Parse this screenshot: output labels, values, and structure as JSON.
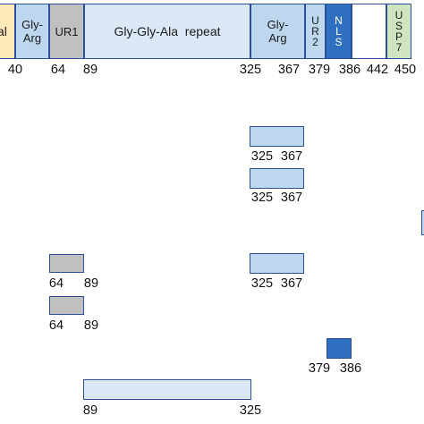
{
  "colors": {
    "border": "#2a4f9c",
    "glyarg": "#bdd7ee",
    "gray": "#c0c0c0",
    "repeat": "#dbe8f6",
    "nls": "#2e6fbf",
    "usp7": "#cfe5c0",
    "nterm": "#fde9b8",
    "white": "#ffffff"
  },
  "full_protein": {
    "domains": [
      {
        "id": "nterm",
        "label": "al",
        "color": "nterm"
      },
      {
        "id": "glyarg1",
        "label": "Gly-\nArg",
        "color": "glyarg"
      },
      {
        "id": "ur1",
        "label": "UR1",
        "color": "gray"
      },
      {
        "id": "repeat",
        "label": "Gly-Gly-Ala  repeat",
        "color": "repeat"
      },
      {
        "id": "glyarg2",
        "label": "Gly-\nArg",
        "color": "glyarg"
      },
      {
        "id": "ur2",
        "label": "U\nR\n2",
        "color": "glyarg",
        "vertical": true
      },
      {
        "id": "nls",
        "label": "N\nL\nS",
        "color": "nls",
        "vertical": true,
        "text_color": "#ffffff"
      },
      {
        "id": "blank",
        "label": "",
        "color": "white"
      },
      {
        "id": "usp7",
        "label": "U\nS\nP\n7",
        "color": "usp7",
        "vertical": true
      }
    ],
    "positions": [
      "40",
      "64",
      "89",
      "325",
      "367",
      "379",
      "386",
      "442",
      "450"
    ]
  },
  "fragments": [
    {
      "id": "frag-glyarg-1",
      "color": "glyarg",
      "labels": [
        "325",
        "367"
      ]
    },
    {
      "id": "frag-glyarg-2",
      "color": "glyarg",
      "labels": [
        "325",
        "367"
      ]
    },
    {
      "id": "frag-ur1-1",
      "color": "gray",
      "labels": [
        "64",
        "89"
      ]
    },
    {
      "id": "frag-glyarg-3",
      "color": "glyarg",
      "labels": [
        "325",
        "367"
      ]
    },
    {
      "id": "frag-ur1-2",
      "color": "gray",
      "labels": [
        "64",
        "89"
      ]
    },
    {
      "id": "frag-nls",
      "color": "nls",
      "labels": [
        "379",
        "386"
      ]
    },
    {
      "id": "frag-repeat",
      "color": "repeat",
      "labels": [
        "89",
        "325"
      ]
    }
  ]
}
